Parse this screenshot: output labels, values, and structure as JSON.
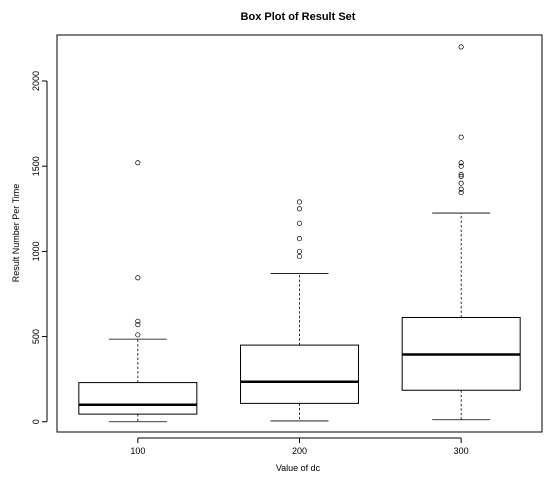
{
  "chart_data": {
    "type": "boxplot",
    "title": "Box Plot of Result Set",
    "xlabel": "Value of dc",
    "ylabel": "Result Number Per Time",
    "categories": [
      "100",
      "200",
      "300"
    ],
    "ylim": [
      -60,
      2270
    ],
    "y_ticks": [
      0,
      500,
      1000,
      1500,
      2000
    ],
    "boxes": [
      {
        "category": "100",
        "min": 0,
        "q1": 45,
        "median": 100,
        "q3": 230,
        "max": 485,
        "outliers": [
          510,
          570,
          590,
          845,
          1520
        ]
      },
      {
        "category": "200",
        "min": 5,
        "q1": 108,
        "median": 235,
        "q3": 450,
        "max": 870,
        "outliers": [
          970,
          1000,
          1075,
          1165,
          1250,
          1290
        ]
      },
      {
        "category": "300",
        "min": 12,
        "q1": 185,
        "median": 395,
        "q3": 612,
        "max": 1225,
        "outliers": [
          1345,
          1365,
          1400,
          1440,
          1450,
          1500,
          1520,
          1670,
          2200
        ]
      }
    ],
    "grid": false,
    "legend": "none"
  }
}
